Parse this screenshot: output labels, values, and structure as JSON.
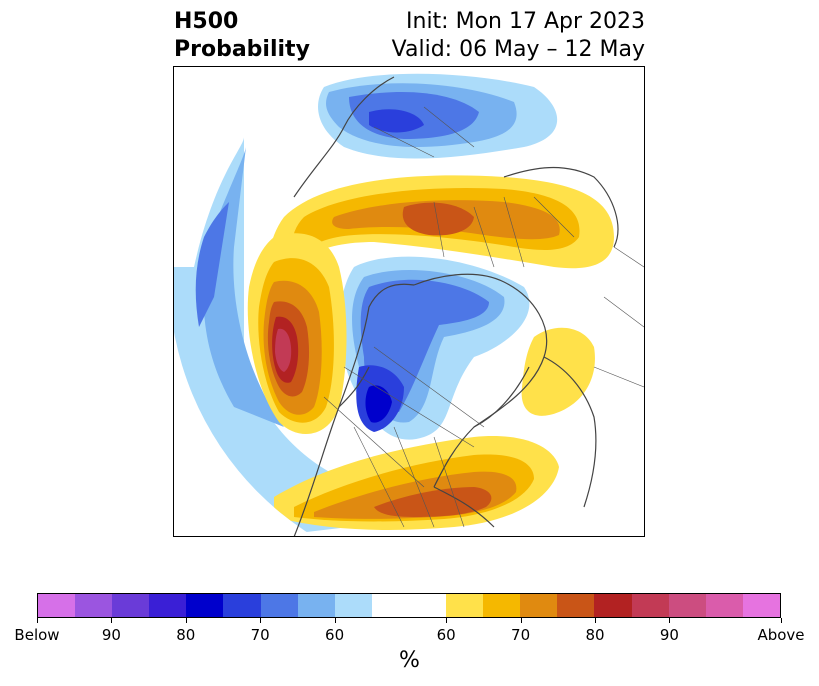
{
  "header": {
    "title_line1": "H500",
    "title_line2": "Probability",
    "init_text": "Init: Mon 17 Apr 2023",
    "valid_text": "Valid: 06 May – 12 May"
  },
  "colorbar": {
    "colors": [
      "#d670e8",
      "#9b55e0",
      "#6a3bd8",
      "#3a1fd6",
      "#0000cc",
      "#2a3fdc",
      "#4d77e6",
      "#78b2f0",
      "#acdcfa",
      "#ffffff",
      "#ffffff",
      "#ffe14a",
      "#f5b800",
      "#e08a10",
      "#c95517",
      "#b22222",
      "#c23a55",
      "#cc4d80",
      "#da5cab",
      "#e673e0"
    ],
    "tick_labels": [
      "Below",
      "90",
      "80",
      "70",
      "60",
      "60",
      "70",
      "80",
      "90",
      "Above"
    ],
    "unit_label": "%"
  },
  "map": {
    "region": "North Hemisphere polar view",
    "below_color": "#4d77e6",
    "above_color": "#c95517"
  }
}
